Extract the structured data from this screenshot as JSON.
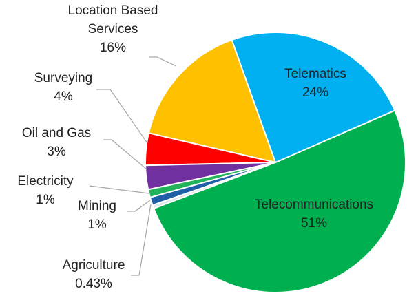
{
  "chart_data": {
    "type": "pie",
    "categories": [
      "Telematics",
      "Telecommunications",
      "Agriculture",
      "Mining",
      "Electricity",
      "Oil and Gas",
      "Surveying",
      "Location Based Services"
    ],
    "values": [
      24,
      51,
      0.43,
      1,
      1,
      3,
      4,
      16
    ],
    "value_labels": [
      "24%",
      "51%",
      "0.43%",
      "1%",
      "1%",
      "3%",
      "4%",
      "16%"
    ],
    "colors": [
      "#00b0f0",
      "#00b050",
      "#dfe6ea",
      "#1f5fa8",
      "#21b35a",
      "#7030a0",
      "#ff0000",
      "#ffc000"
    ]
  }
}
